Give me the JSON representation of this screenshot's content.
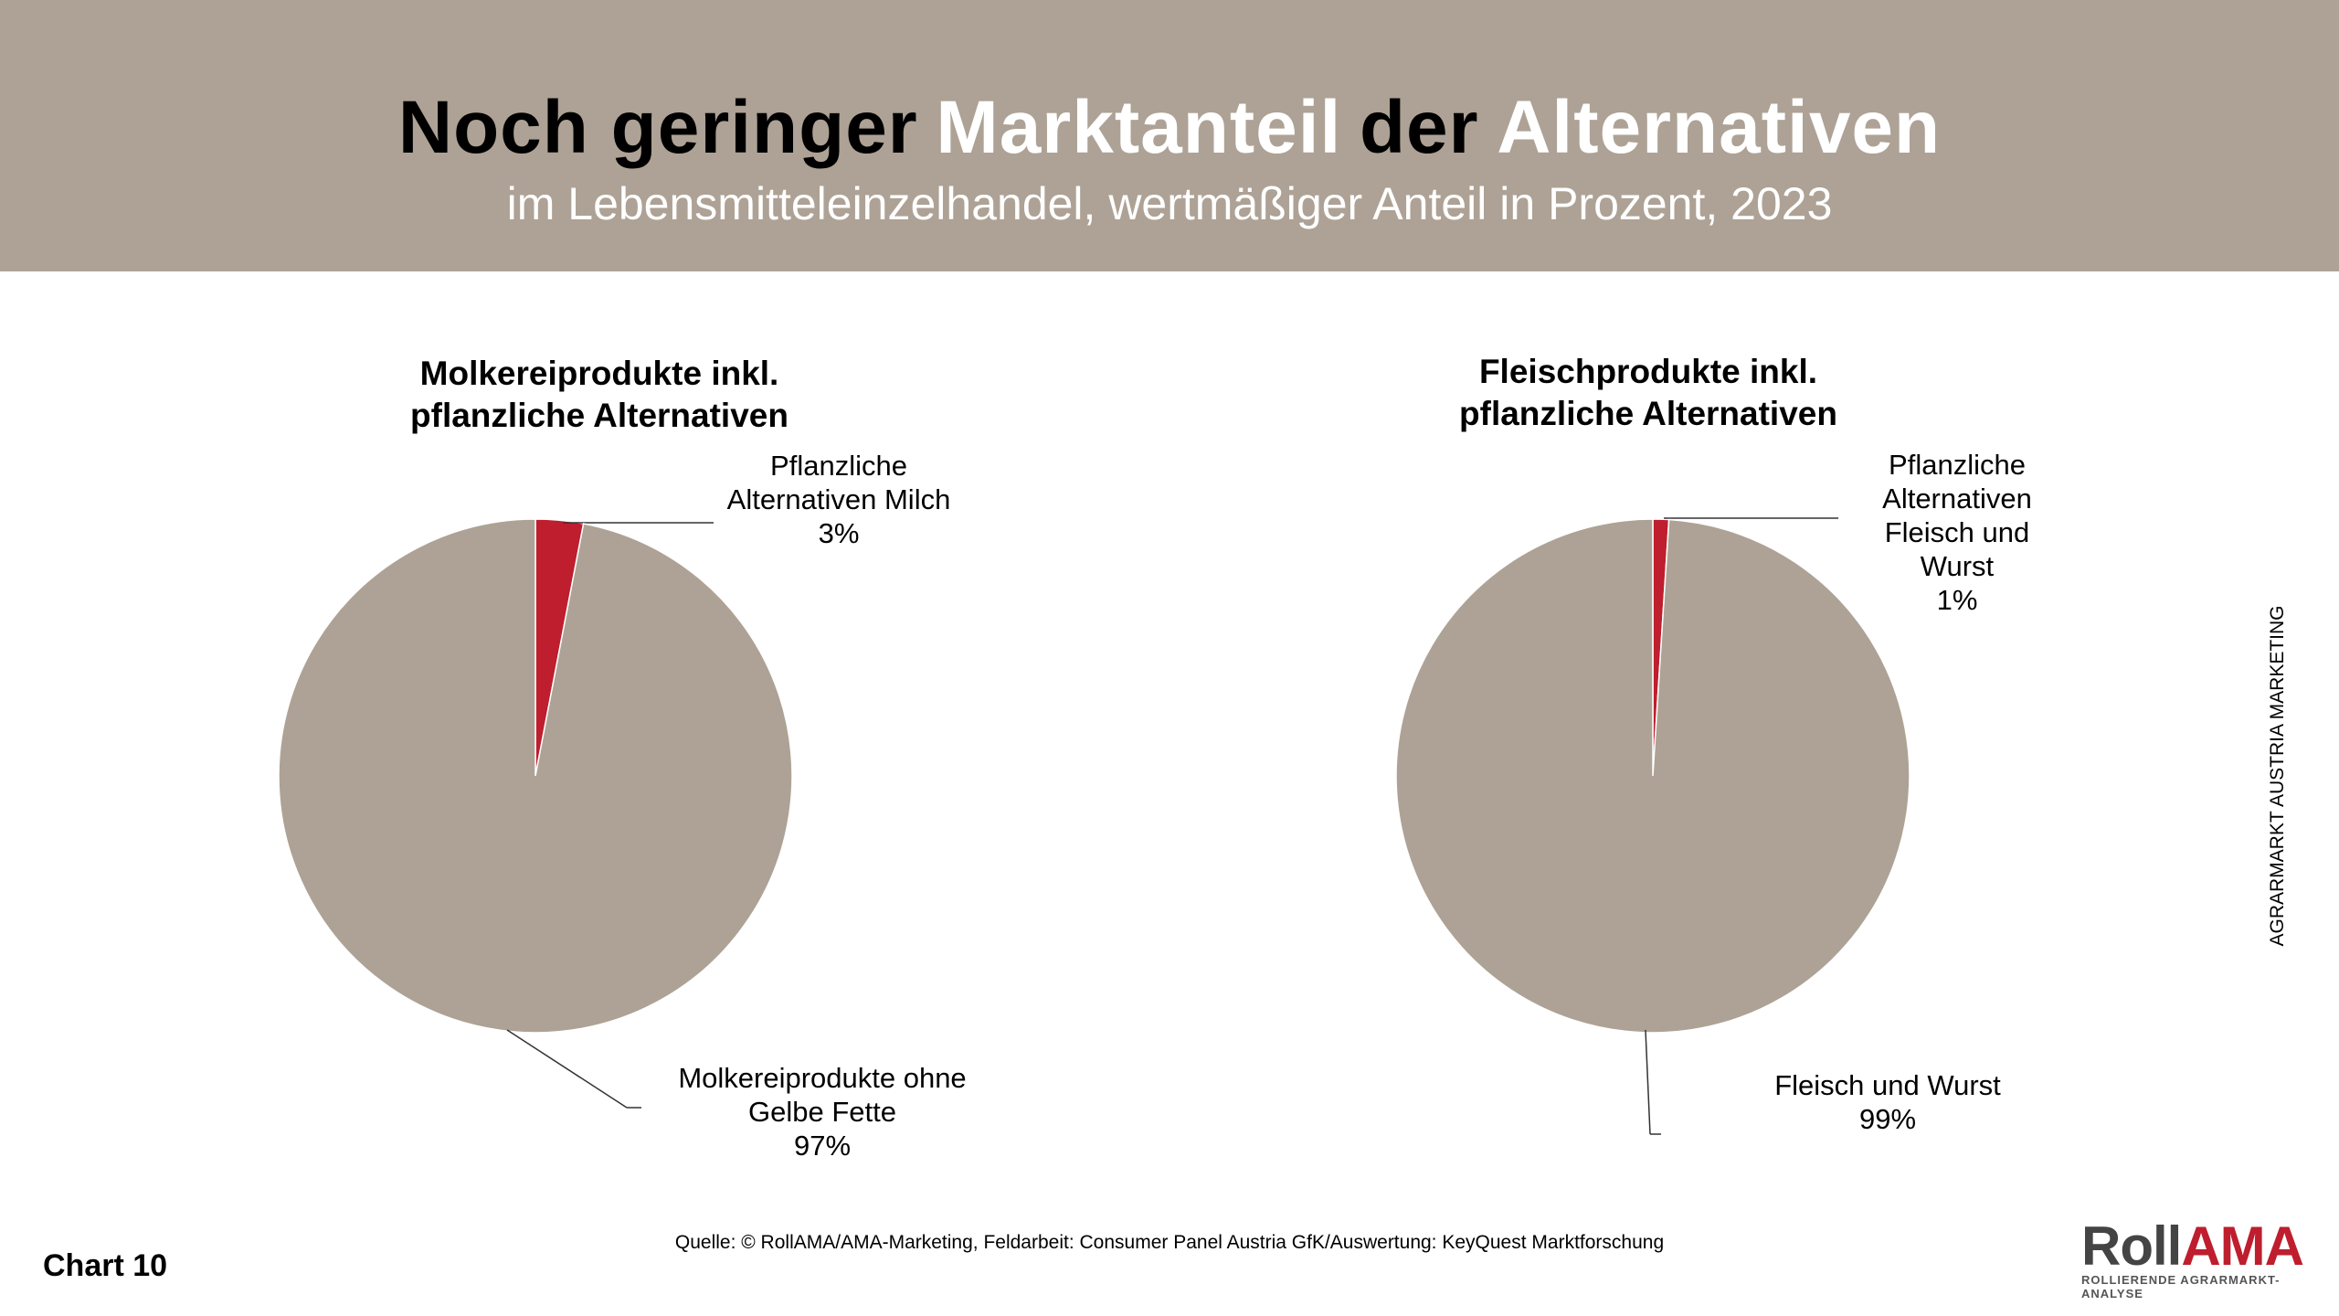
{
  "header": {
    "title_parts": [
      {
        "text": "Noch geringer",
        "color": "#000000"
      },
      {
        "text": "Marktanteil",
        "color": "#ffffff"
      },
      {
        "text": "der",
        "color": "#000000"
      },
      {
        "text": "Alternativen",
        "color": "#ffffff"
      }
    ],
    "subtitle": "im Lebensmitteleinzelhandel, wertmäßiger Anteil in Prozent, 2023"
  },
  "chart_data": [
    {
      "type": "pie",
      "title": "Molkereiprodukte inkl. pflanzliche Alternativen",
      "categories": [
        "Pflanzliche Alternativen Milch",
        "Molkereiprodukte ohne Gelbe Fette"
      ],
      "values": [
        3,
        97
      ],
      "value_labels": [
        "3%",
        "97%"
      ],
      "colors": [
        "#be1e2d",
        "#ada295"
      ]
    },
    {
      "type": "pie",
      "title": "Fleischprodukte inkl. pflanzliche Alternativen",
      "categories": [
        "Pflanzliche Alternativen Fleisch und Wurst",
        "Fleisch und Wurst"
      ],
      "values": [
        1,
        99
      ],
      "value_labels": [
        "1%",
        "99%"
      ],
      "colors": [
        "#be1e2d",
        "#ada295"
      ]
    }
  ],
  "side_text": "AGRARMARKT AUSTRIA MARKETING",
  "footer": {
    "chart_number": "Chart 10",
    "source": "Quelle: © RollAMA/AMA-Marketing, Feldarbeit: Consumer Panel Austria GfK/Auswertung: KeyQuest Marktforschung",
    "logo_part1": "Roll",
    "logo_part2": "AMA",
    "logo_tagline": "ROLLIERENDE AGRARMARKT-ANALYSE"
  }
}
